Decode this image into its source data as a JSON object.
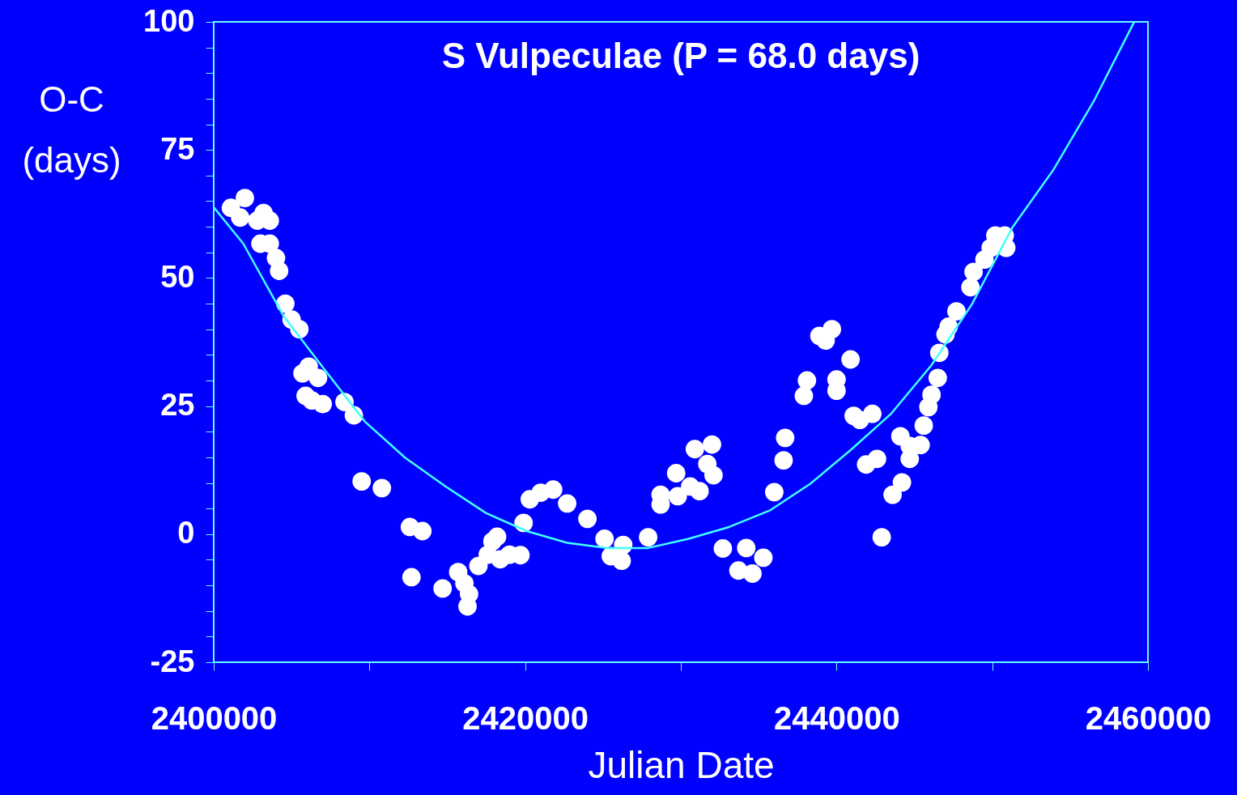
{
  "chart_data": {
    "type": "scatter",
    "title": "S Vulpeculae (P = 68.0 days)",
    "xlabel": "Julian Date",
    "ylabel": "O-C\n(days)",
    "xlim": [
      2400000,
      2460000
    ],
    "xticks": [
      2400000,
      {
        "value": 2410000,
        "label": null
      },
      2420000,
      {
        "value": 2430000,
        "label": null
      },
      2440000,
      {
        "value": 2450000,
        "label": null
      },
      2460000
    ],
    "ylim": [
      -25,
      100
    ],
    "yticks": [
      -25,
      {
        "value": -20,
        "label": null
      },
      {
        "value": -15,
        "label": null
      },
      {
        "value": -10,
        "label": null
      },
      {
        "value": -5,
        "label": null
      },
      0,
      {
        "value": 5,
        "label": null
      },
      {
        "value": 10,
        "label": null
      },
      {
        "value": 15,
        "label": null
      },
      {
        "value": 20,
        "label": null
      },
      25,
      {
        "value": 30,
        "label": null
      },
      {
        "value": 35,
        "label": null
      },
      {
        "value": 40,
        "label": null
      },
      {
        "value": 45,
        "label": null
      },
      50,
      {
        "value": 55,
        "label": null
      },
      {
        "value": 60,
        "label": null
      },
      {
        "value": 65,
        "label": null
      },
      {
        "value": 70,
        "label": null
      },
      75,
      {
        "value": 80,
        "label": null
      },
      {
        "value": 85,
        "label": null
      },
      {
        "value": 90,
        "label": null
      },
      {
        "value": 95,
        "label": null
      },
      100
    ],
    "grid": false,
    "series": [
      {
        "type": "scatter",
        "color": "#ffffff",
        "marker": "circle",
        "x": [
          2401100,
          2402000,
          2401700,
          2402800,
          2403200,
          2403600,
          2403000,
          2403600,
          2404000,
          2404200,
          2404600,
          2405000,
          2405500,
          2405700,
          2406100,
          2406700,
          2405900,
          2406300,
          2407000,
          2408400,
          2409000,
          2409500,
          2410800,
          2412600,
          2413400,
          2412700,
          2414700,
          2415700,
          2416100,
          2416400,
          2416300,
          2417000,
          2417600,
          2417900,
          2418200,
          2418400,
          2419000,
          2419700,
          2419900,
          2420300,
          2421000,
          2421800,
          2422700,
          2424000,
          2425100,
          2425500,
          2426200,
          2426300,
          2427900,
          2428700,
          2428700,
          2429700,
          2429800,
          2430600,
          2430900,
          2431200,
          2431700,
          2432000,
          2432100,
          2432700,
          2433700,
          2434200,
          2434600,
          2435300,
          2436000,
          2436600,
          2436700,
          2437900,
          2438100,
          2438900,
          2439300,
          2439700,
          2440000,
          2440000,
          2440900,
          2441100,
          2441500,
          2441900,
          2442300,
          2442600,
          2442900,
          2443600,
          2444100,
          2444200,
          2444700,
          2444700,
          2445400,
          2445600,
          2445900,
          2446100,
          2446500,
          2446600,
          2447000,
          2447200,
          2447700,
          2448600,
          2448800,
          2449500,
          2449900,
          2450200,
          2450800,
          2450900
        ],
        "values": [
          63.7,
          65.6,
          61.8,
          61.2,
          62.7,
          61.2,
          56.7,
          56.7,
          53.9,
          51.4,
          45.0,
          41.9,
          40.0,
          31.4,
          32.7,
          30.5,
          27.0,
          26.1,
          25.4,
          25.8,
          23.2,
          10.3,
          9.0,
          1.4,
          0.6,
          -8.4,
          -10.6,
          -7.4,
          -9.6,
          -11.7,
          -14.1,
          -6.2,
          -4.0,
          -1.4,
          -0.5,
          -4.9,
          -4.0,
          -4.1,
          2.2,
          6.8,
          8.1,
          8.7,
          6.0,
          3.0,
          -0.9,
          -4.3,
          -5.2,
          -2.1,
          -0.6,
          7.7,
          5.8,
          11.9,
          7.4,
          9.3,
          16.6,
          8.4,
          13.7,
          17.5,
          11.5,
          -2.8,
          -7.1,
          -2.7,
          -7.7,
          -4.6,
          8.2,
          14.4,
          18.8,
          27.0,
          30.0,
          38.7,
          37.8,
          40.0,
          30.2,
          28.0,
          34.1,
          23.1,
          22.3,
          13.6,
          23.5,
          14.7,
          -0.6,
          7.7,
          19.1,
          10.1,
          14.7,
          17.2,
          17.4,
          21.2,
          24.8,
          27.2,
          30.5,
          35.4,
          39.0,
          40.5,
          43.5,
          48.2,
          51.2,
          53.6,
          55.9,
          58.3,
          58.3,
          55.9
        ]
      },
      {
        "type": "line",
        "color": "#40ffff",
        "marker": "none",
        "line_style": "solid",
        "x": [
          2400000,
          2401900,
          2404500,
          2407100,
          2409700,
          2412300,
          2414900,
          2417500,
          2420100,
          2422700,
          2425300,
          2427900,
          2430500,
          2433100,
          2435700,
          2438300,
          2440900,
          2443500,
          2446100,
          2448700,
          2451300,
          2453900,
          2456500,
          2459100
        ],
        "values": [
          63.8,
          56.7,
          42.5,
          32.2,
          22.0,
          14.9,
          9.3,
          4.1,
          0.6,
          -1.7,
          -2.7,
          -2.7,
          -0.9,
          1.4,
          4.6,
          9.8,
          16.4,
          23.5,
          33.0,
          44.9,
          59.9,
          71.0,
          84.4,
          99.9
        ]
      }
    ]
  }
}
